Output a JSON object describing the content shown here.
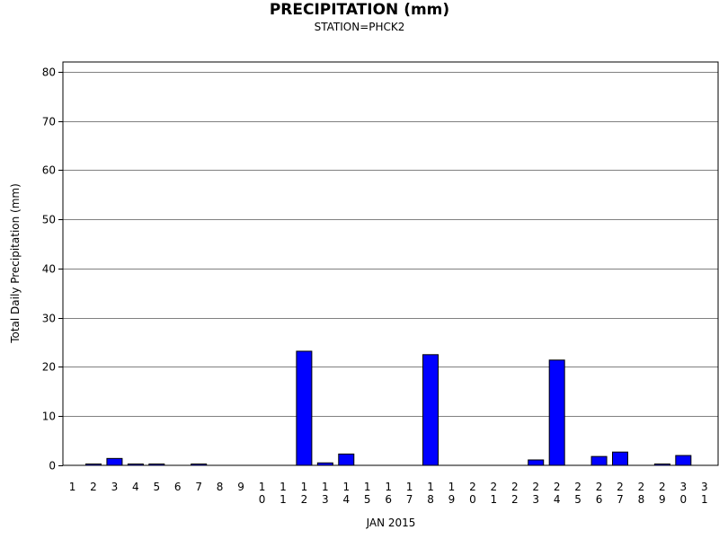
{
  "chart_data": {
    "type": "bar",
    "title": "PRECIPITATION (mm)",
    "subtitle": "STATION=PHCK2",
    "xlabel": "JAN 2015",
    "ylabel": "Total Daily Precipitation (mm)",
    "ylim": [
      0,
      82
    ],
    "yticks": [
      0,
      10,
      20,
      30,
      40,
      50,
      60,
      70,
      80
    ],
    "grid": true,
    "categories": [
      "1",
      "2",
      "3",
      "4",
      "5",
      "6",
      "7",
      "8",
      "9",
      "10",
      "11",
      "12",
      "13",
      "14",
      "15",
      "16",
      "17",
      "18",
      "19",
      "20",
      "21",
      "22",
      "23",
      "24",
      "25",
      "26",
      "27",
      "28",
      "29",
      "30",
      "31"
    ],
    "values": [
      0,
      0.1,
      1.4,
      0.1,
      0.1,
      0,
      0.1,
      0,
      0,
      0,
      0,
      23.2,
      0.5,
      2.3,
      0,
      0,
      0,
      22.5,
      0,
      0,
      0,
      0,
      1.1,
      21.4,
      0,
      1.8,
      2.7,
      0,
      0.1,
      2.0,
      0
    ],
    "colors": {
      "bar": "#0000ff",
      "bar_outline": "#000000",
      "grid": "#808080"
    }
  }
}
